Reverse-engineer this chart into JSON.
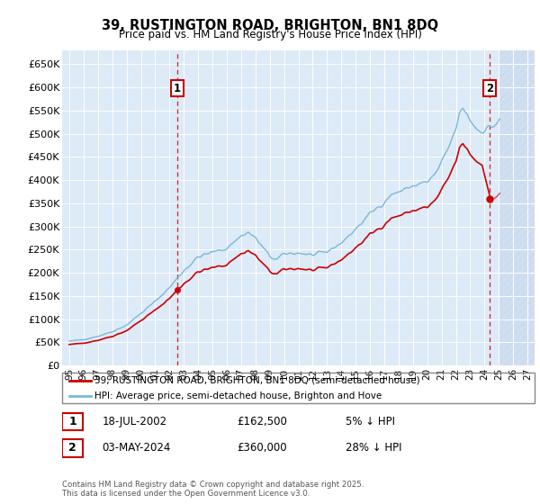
{
  "title": "39, RUSTINGTON ROAD, BRIGHTON, BN1 8DQ",
  "subtitle": "Price paid vs. HM Land Registry's House Price Index (HPI)",
  "ylabel_ticks": [
    "£0",
    "£50K",
    "£100K",
    "£150K",
    "£200K",
    "£250K",
    "£300K",
    "£350K",
    "£400K",
    "£450K",
    "£500K",
    "£550K",
    "£600K",
    "£650K"
  ],
  "ylim": [
    0,
    680000
  ],
  "xlim_start": 1994.5,
  "xlim_end": 2027.5,
  "x_ticks": [
    1995,
    1996,
    1997,
    1998,
    1999,
    2000,
    2001,
    2002,
    2003,
    2004,
    2005,
    2006,
    2007,
    2008,
    2009,
    2010,
    2011,
    2012,
    2013,
    2014,
    2015,
    2016,
    2017,
    2018,
    2019,
    2020,
    2021,
    2022,
    2023,
    2024,
    2025,
    2026,
    2027
  ],
  "hpi_color": "#7ab8d9",
  "price_color": "#cc0000",
  "bg_color": "#ddeaf7",
  "hatch_start": 2025.0,
  "sale1_x": 2002.54,
  "sale1_y": 162500,
  "sale2_x": 2024.34,
  "sale2_y": 360000,
  "legend_line1": "39, RUSTINGTON ROAD, BRIGHTON, BN1 8DQ (semi-detached house)",
  "legend_line2": "HPI: Average price, semi-detached house, Brighton and Hove",
  "sale1_date": "18-JUL-2002",
  "sale1_price": "£162,500",
  "sale1_hpi_text": "5% ↓ HPI",
  "sale2_date": "03-MAY-2024",
  "sale2_price": "£360,000",
  "sale2_hpi_text": "28% ↓ HPI",
  "footnote": "Contains HM Land Registry data © Crown copyright and database right 2025.\nThis data is licensed under the Open Government Licence v3.0."
}
